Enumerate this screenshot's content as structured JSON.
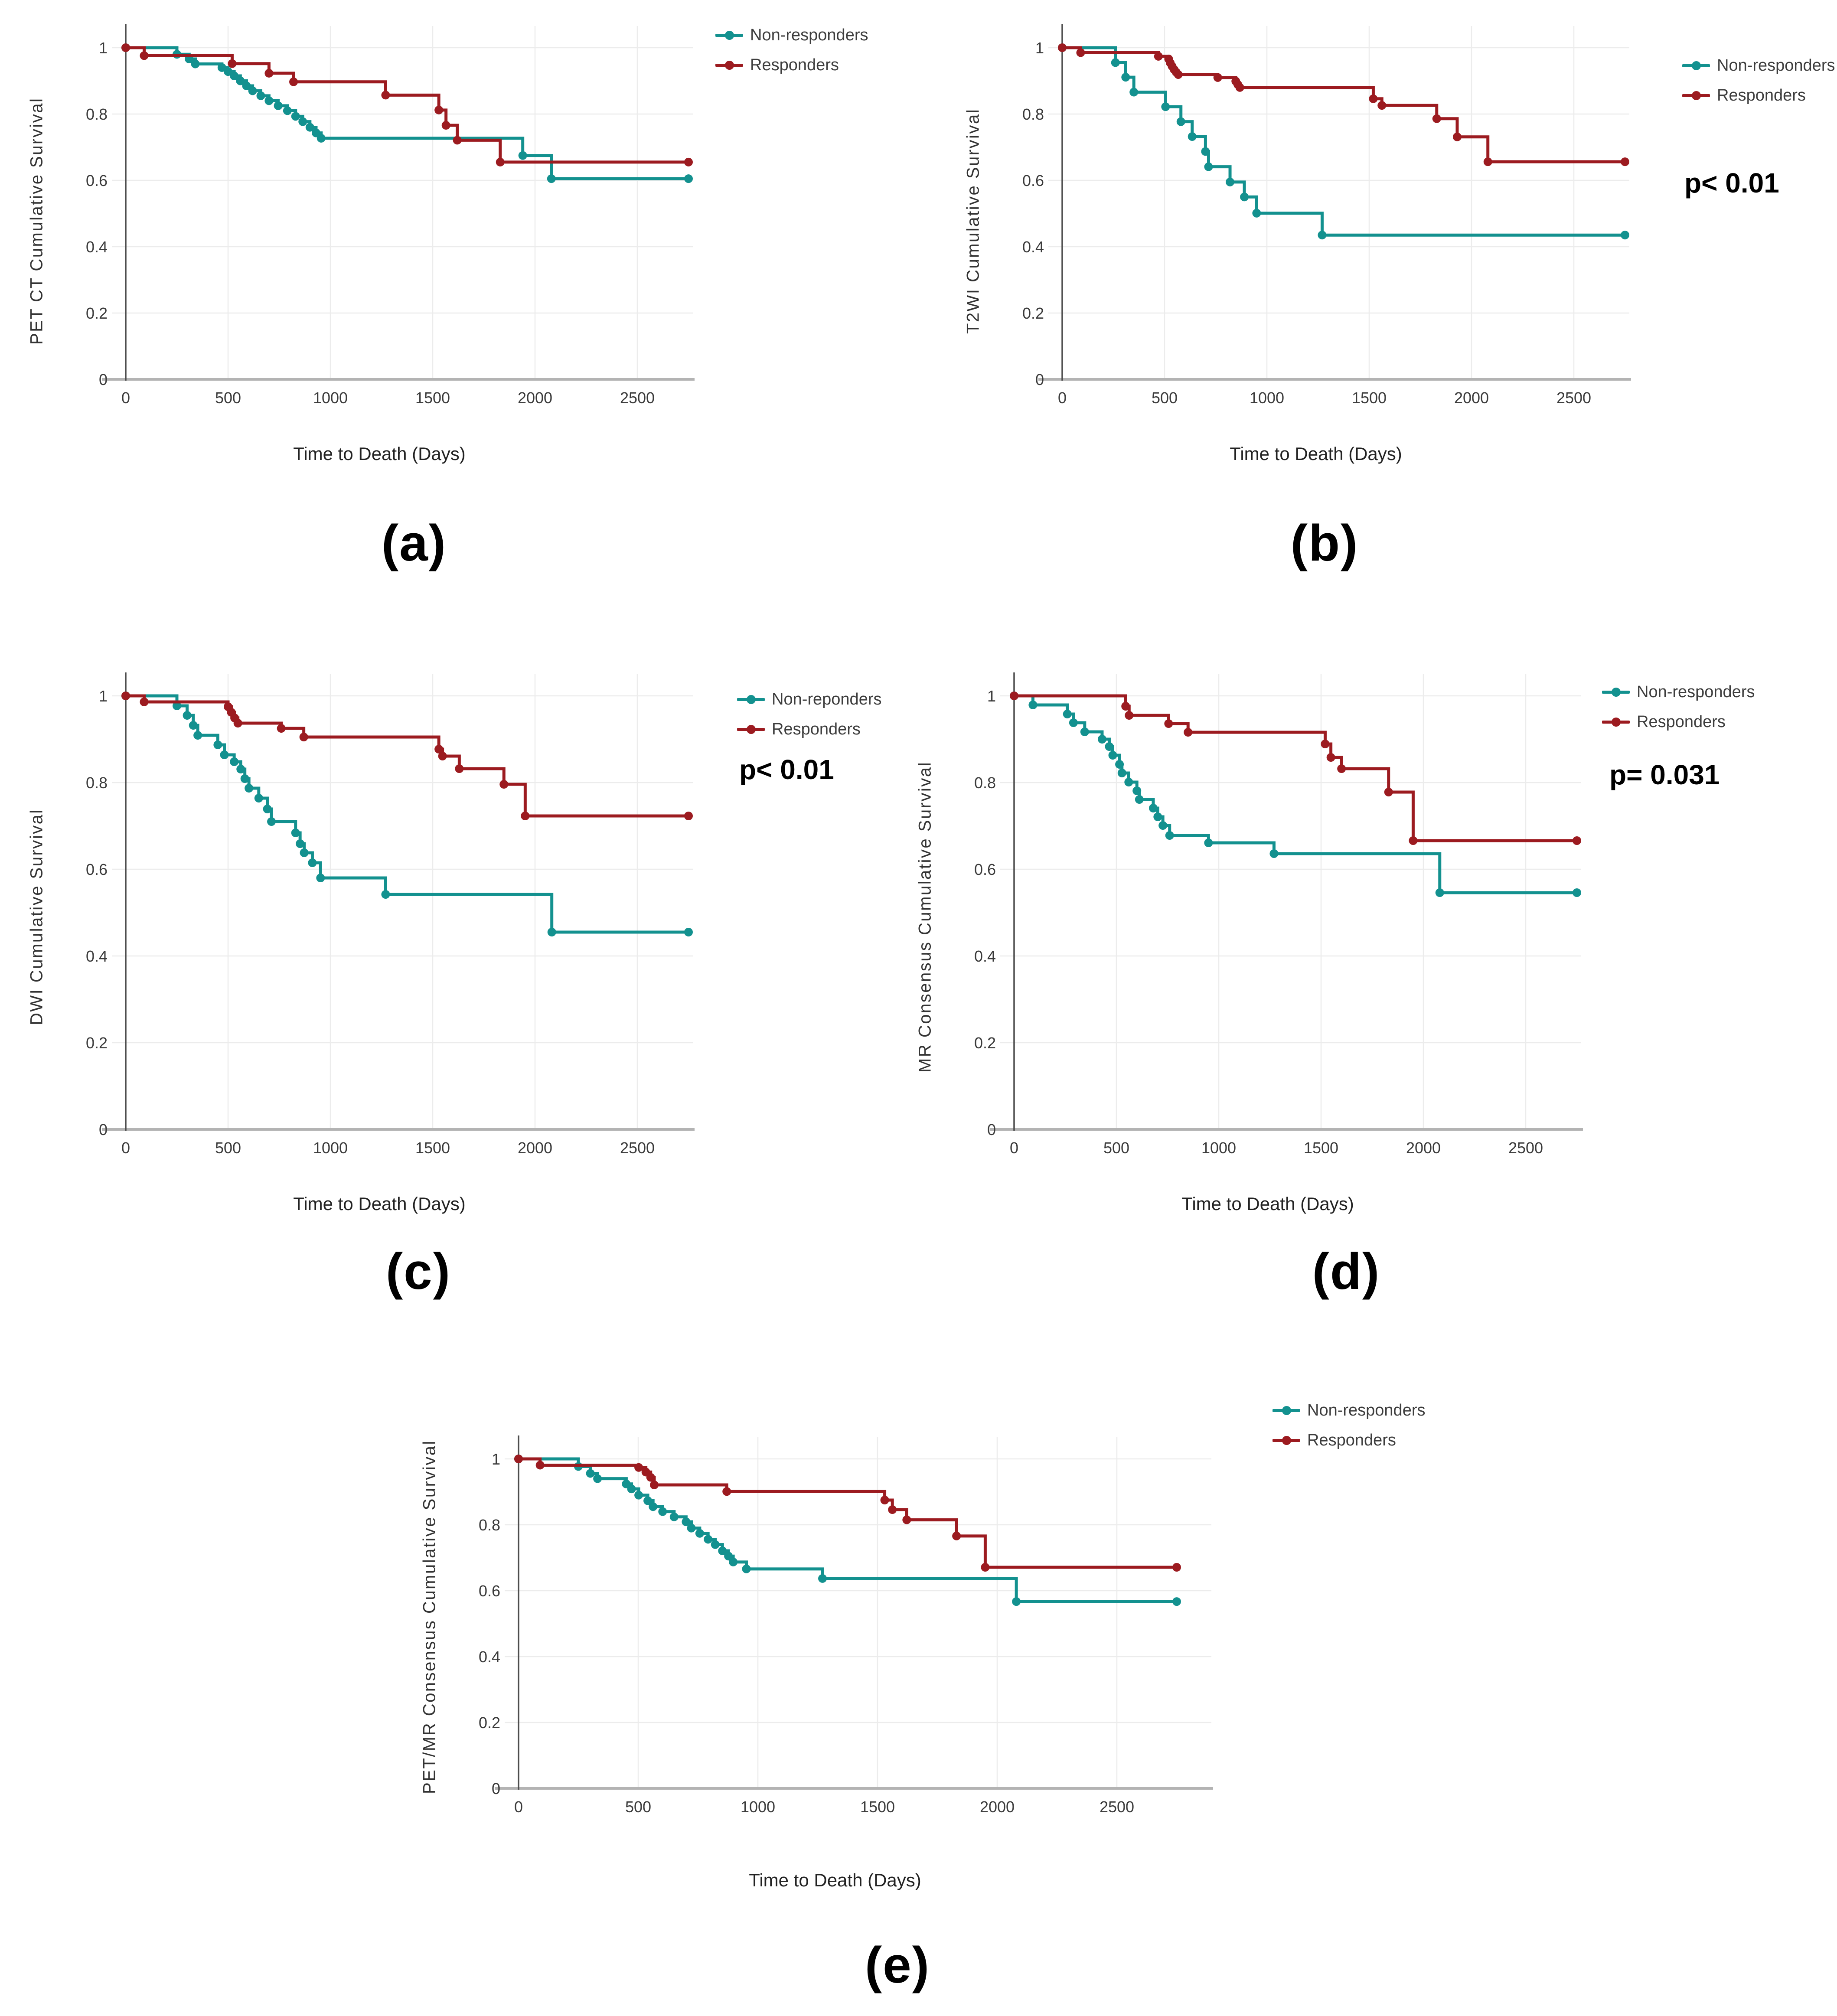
{
  "figure": {
    "background": "#ffffff",
    "colors": {
      "non_responders": "#13918F",
      "responders": "#9C1B20",
      "grid": "#ececec",
      "x_axis_line": "#b3b3b3",
      "y_axis_line": "#4d4d4d",
      "tick_text": "#3a3a3a",
      "label_text": "#222222"
    }
  },
  "chart_data": [
    {
      "id": "a",
      "caption": "(a)",
      "type": "line",
      "subtype": "kaplan_meier_step",
      "xlabel": "Time to Death (Days)",
      "ylabel": "PET CT Cumulative Survival",
      "p_label": null,
      "xlim": [
        0,
        2900
      ],
      "ylim": [
        0,
        1.05
      ],
      "xticks": [
        0,
        500,
        1000,
        1500,
        2000,
        2500
      ],
      "yticks": [
        0,
        0.2,
        0.4,
        0.6,
        0.8,
        1
      ],
      "grid": true,
      "legend_position": "outside-top-right",
      "series": [
        {
          "name": "Non-responders",
          "color": "#13918F",
          "points": [
            [
              0,
              1
            ],
            [
              250,
              0.98
            ],
            [
              310,
              0.966
            ],
            [
              340,
              0.951
            ],
            [
              470,
              0.94
            ],
            [
              500,
              0.928
            ],
            [
              530,
              0.915
            ],
            [
              560,
              0.9
            ],
            [
              590,
              0.885
            ],
            [
              620,
              0.87
            ],
            [
              660,
              0.855
            ],
            [
              700,
              0.84
            ],
            [
              745,
              0.825
            ],
            [
              790,
              0.81
            ],
            [
              830,
              0.793
            ],
            [
              865,
              0.777
            ],
            [
              900,
              0.76
            ],
            [
              930,
              0.743
            ],
            [
              955,
              0.727
            ],
            [
              1940,
              0.675
            ],
            [
              2080,
              0.605
            ],
            [
              2750,
              0.605
            ]
          ]
        },
        {
          "name": "Responders",
          "color": "#9C1B20",
          "points": [
            [
              0,
              1
            ],
            [
              90,
              0.976
            ],
            [
              520,
              0.952
            ],
            [
              700,
              0.923
            ],
            [
              820,
              0.897
            ],
            [
              1270,
              0.857
            ],
            [
              1530,
              0.812
            ],
            [
              1565,
              0.766
            ],
            [
              1620,
              0.721
            ],
            [
              1830,
              0.655
            ],
            [
              2750,
              0.655
            ]
          ]
        }
      ]
    },
    {
      "id": "b",
      "caption": "(b)",
      "type": "line",
      "subtype": "kaplan_meier_step",
      "xlabel": "Time to Death (Days)",
      "ylabel": "T2WI Cumulative Survival",
      "p_label": "p< 0.01",
      "xlim": [
        0,
        2900
      ],
      "ylim": [
        0,
        1.05
      ],
      "xticks": [
        0,
        500,
        1000,
        1500,
        2000,
        2500
      ],
      "yticks": [
        0,
        0.2,
        0.4,
        0.6,
        0.8,
        1
      ],
      "grid": true,
      "legend_position": "outside-top-right",
      "series": [
        {
          "name": "Non-responders",
          "color": "#13918F",
          "points": [
            [
              0,
              1
            ],
            [
              260,
              0.955
            ],
            [
              310,
              0.911
            ],
            [
              350,
              0.866
            ],
            [
              505,
              0.822
            ],
            [
              580,
              0.777
            ],
            [
              635,
              0.732
            ],
            [
              700,
              0.687
            ],
            [
              715,
              0.641
            ],
            [
              820,
              0.595
            ],
            [
              890,
              0.55
            ],
            [
              950,
              0.501
            ],
            [
              1270,
              0.435
            ],
            [
              2750,
              0.435
            ]
          ]
        },
        {
          "name": "Responders",
          "color": "#9C1B20",
          "points": [
            [
              0,
              1
            ],
            [
              90,
              0.985
            ],
            [
              470,
              0.974
            ],
            [
              520,
              0.966
            ],
            [
              528,
              0.954
            ],
            [
              537,
              0.944
            ],
            [
              547,
              0.934
            ],
            [
              557,
              0.926
            ],
            [
              567,
              0.919
            ],
            [
              760,
              0.91
            ],
            [
              848,
              0.899
            ],
            [
              858,
              0.889
            ],
            [
              868,
              0.88
            ],
            [
              1520,
              0.846
            ],
            [
              1562,
              0.826
            ],
            [
              1830,
              0.786
            ],
            [
              1930,
              0.731
            ],
            [
              2080,
              0.656
            ],
            [
              2750,
              0.656
            ]
          ]
        }
      ]
    },
    {
      "id": "c",
      "caption": "(c)",
      "type": "line",
      "subtype": "kaplan_meier_step",
      "xlabel": "Time to Death (Days)",
      "ylabel": "DWI Cumulative Survival",
      "p_label": "p< 0.01",
      "xlim": [
        0,
        2900
      ],
      "ylim": [
        0,
        1.05
      ],
      "xticks": [
        0,
        500,
        1000,
        1500,
        2000,
        2500
      ],
      "yticks": [
        0,
        0.2,
        0.4,
        0.6,
        0.8,
        1
      ],
      "grid": true,
      "legend_position": "outside-top-right",
      "series": [
        {
          "name": "Non-reponders",
          "color": "#13918F",
          "points": [
            [
              0,
              1
            ],
            [
              250,
              0.977
            ],
            [
              300,
              0.955
            ],
            [
              330,
              0.932
            ],
            [
              352,
              0.909
            ],
            [
              450,
              0.887
            ],
            [
              482,
              0.864
            ],
            [
              530,
              0.848
            ],
            [
              562,
              0.831
            ],
            [
              582,
              0.809
            ],
            [
              602,
              0.787
            ],
            [
              650,
              0.764
            ],
            [
              692,
              0.739
            ],
            [
              712,
              0.71
            ],
            [
              830,
              0.684
            ],
            [
              852,
              0.659
            ],
            [
              872,
              0.638
            ],
            [
              912,
              0.615
            ],
            [
              952,
              0.58
            ],
            [
              1270,
              0.542
            ],
            [
              2082,
              0.455
            ],
            [
              2750,
              0.455
            ]
          ]
        },
        {
          "name": "Responders",
          "color": "#9C1B20",
          "points": [
            [
              0,
              1
            ],
            [
              90,
              0.986
            ],
            [
              500,
              0.975
            ],
            [
              516,
              0.962
            ],
            [
              532,
              0.949
            ],
            [
              548,
              0.937
            ],
            [
              760,
              0.925
            ],
            [
              870,
              0.905
            ],
            [
              1530,
              0.877
            ],
            [
              1548,
              0.861
            ],
            [
              1630,
              0.832
            ],
            [
              1848,
              0.796
            ],
            [
              1952,
              0.723
            ],
            [
              2750,
              0.723
            ]
          ]
        }
      ]
    },
    {
      "id": "d",
      "caption": "(d)",
      "type": "line",
      "subtype": "kaplan_meier_step",
      "xlabel": "Time to Death (Days)",
      "ylabel": "MR Consensus Cumulative Survival",
      "p_label": "p= 0.031",
      "xlim": [
        0,
        2900
      ],
      "ylim": [
        0,
        1.05
      ],
      "xticks": [
        0,
        500,
        1000,
        1500,
        2000,
        2500
      ],
      "yticks": [
        0,
        0.2,
        0.4,
        0.6,
        0.8,
        1
      ],
      "grid": true,
      "legend_position": "outside-top-right",
      "series": [
        {
          "name": "Non-responders",
          "color": "#13918F",
          "points": [
            [
              0,
              1
            ],
            [
              92,
              0.979
            ],
            [
              260,
              0.958
            ],
            [
              290,
              0.938
            ],
            [
              345,
              0.917
            ],
            [
              430,
              0.9
            ],
            [
              465,
              0.883
            ],
            [
              482,
              0.863
            ],
            [
              515,
              0.842
            ],
            [
              527,
              0.822
            ],
            [
              560,
              0.801
            ],
            [
              600,
              0.781
            ],
            [
              612,
              0.761
            ],
            [
              680,
              0.741
            ],
            [
              702,
              0.721
            ],
            [
              727,
              0.701
            ],
            [
              760,
              0.678
            ],
            [
              950,
              0.661
            ],
            [
              1270,
              0.636
            ],
            [
              2080,
              0.546
            ],
            [
              2750,
              0.546
            ]
          ]
        },
        {
          "name": "Responders",
          "color": "#9C1B20",
          "points": [
            [
              0,
              1
            ],
            [
              545,
              0.976
            ],
            [
              562,
              0.955
            ],
            [
              755,
              0.936
            ],
            [
              850,
              0.916
            ],
            [
              1520,
              0.889
            ],
            [
              1548,
              0.858
            ],
            [
              1600,
              0.832
            ],
            [
              1830,
              0.778
            ],
            [
              1950,
              0.666
            ],
            [
              2750,
              0.666
            ]
          ]
        }
      ]
    },
    {
      "id": "e",
      "caption": "(e)",
      "type": "line",
      "subtype": "kaplan_meier_step",
      "xlabel": "Time to Death (Days)",
      "ylabel": "PET/MR Consensus Cumulative Survival",
      "p_label": null,
      "xlim": [
        0,
        2900
      ],
      "ylim": [
        0,
        1.05
      ],
      "xticks": [
        0,
        500,
        1000,
        1500,
        2000,
        2500
      ],
      "yticks": [
        0,
        0.2,
        0.4,
        0.6,
        0.8,
        1
      ],
      "grid": true,
      "legend_position": "outside-top-right",
      "series": [
        {
          "name": "Non-responders",
          "color": "#13918F",
          "points": [
            [
              0,
              1
            ],
            [
              250,
              0.977
            ],
            [
              300,
              0.956
            ],
            [
              330,
              0.94
            ],
            [
              450,
              0.924
            ],
            [
              472,
              0.909
            ],
            [
              502,
              0.89
            ],
            [
              540,
              0.873
            ],
            [
              562,
              0.855
            ],
            [
              602,
              0.84
            ],
            [
              650,
              0.824
            ],
            [
              700,
              0.809
            ],
            [
              722,
              0.79
            ],
            [
              757,
              0.774
            ],
            [
              792,
              0.756
            ],
            [
              822,
              0.74
            ],
            [
              852,
              0.721
            ],
            [
              877,
              0.705
            ],
            [
              897,
              0.687
            ],
            [
              952,
              0.666
            ],
            [
              1270,
              0.637
            ],
            [
              2080,
              0.567
            ],
            [
              2750,
              0.567
            ]
          ]
        },
        {
          "name": "Responders",
          "color": "#9C1B20",
          "points": [
            [
              0,
              1
            ],
            [
              90,
              0.981
            ],
            [
              502,
              0.974
            ],
            [
              532,
              0.96
            ],
            [
              552,
              0.944
            ],
            [
              567,
              0.921
            ],
            [
              870,
              0.901
            ],
            [
              1530,
              0.875
            ],
            [
              1562,
              0.846
            ],
            [
              1622,
              0.815
            ],
            [
              1830,
              0.766
            ],
            [
              1950,
              0.671
            ],
            [
              2750,
              0.671
            ]
          ]
        }
      ]
    }
  ]
}
